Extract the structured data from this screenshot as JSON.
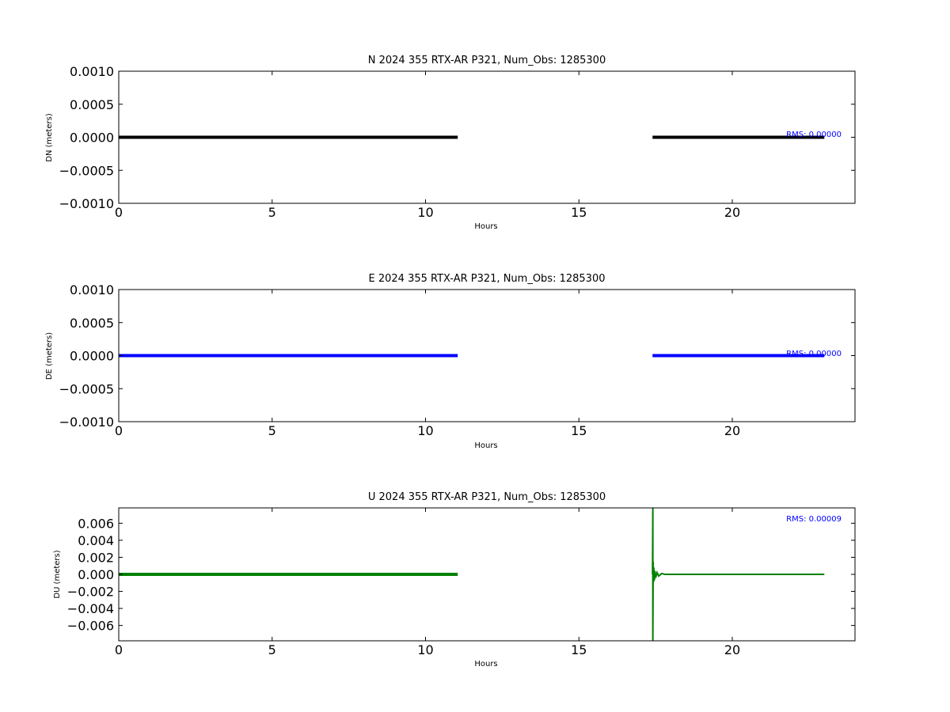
{
  "chart_data": [
    {
      "type": "line",
      "title": "N 2024 355 RTX-AR  P321, Num_Obs: 1285300",
      "xlabel": "Hours",
      "ylabel": "DN (meters)",
      "xlim": [
        0,
        24
      ],
      "ylim": [
        -0.001,
        0.001
      ],
      "xticks": [
        0,
        5,
        10,
        15,
        20
      ],
      "xtick_labels": [
        "0",
        "5",
        "10",
        "15",
        "20"
      ],
      "yticks": [
        0.001,
        0.0005,
        0.0,
        -0.0005,
        -0.001
      ],
      "ytick_labels": [
        "0.0010",
        "0.0005",
        "0.0000",
        "−0.0005",
        "−0.0010"
      ],
      "color": "#000000",
      "annotation": "RMS:  0.00000",
      "grid": false,
      "series": [
        {
          "segments": [
            {
              "x": [
                0.0,
                11.05
              ],
              "y": [
                0.0,
                0.0
              ]
            },
            {
              "x": [
                17.4,
                23.0
              ],
              "y": [
                0.0,
                0.0
              ]
            }
          ]
        }
      ]
    },
    {
      "type": "line",
      "title": "E 2024 355 RTX-AR  P321, Num_Obs: 1285300",
      "xlabel": "Hours",
      "ylabel": "DE (meters)",
      "xlim": [
        0,
        24
      ],
      "ylim": [
        -0.001,
        0.001
      ],
      "xticks": [
        0,
        5,
        10,
        15,
        20
      ],
      "xtick_labels": [
        "0",
        "5",
        "10",
        "15",
        "20"
      ],
      "yticks": [
        0.001,
        0.0005,
        0.0,
        -0.0005,
        -0.001
      ],
      "ytick_labels": [
        "0.0010",
        "0.0005",
        "0.0000",
        "−0.0005",
        "−0.0010"
      ],
      "color": "#0000ff",
      "annotation": "RMS:  0.00000",
      "grid": false,
      "series": [
        {
          "segments": [
            {
              "x": [
                0.0,
                11.05
              ],
              "y": [
                0.0,
                0.0
              ]
            },
            {
              "x": [
                17.4,
                23.0
              ],
              "y": [
                0.0,
                0.0
              ]
            }
          ]
        }
      ]
    },
    {
      "type": "line",
      "title": "U 2024 355 RTX-AR  P321, Num_Obs: 1285300",
      "xlabel": "Hours",
      "ylabel": "DU (meters)",
      "xlim": [
        0,
        24
      ],
      "ylim": [
        -0.0078,
        0.0078
      ],
      "xticks": [
        0,
        5,
        10,
        15,
        20
      ],
      "xtick_labels": [
        "0",
        "5",
        "10",
        "15",
        "20"
      ],
      "yticks": [
        0.006,
        0.004,
        0.002,
        0.0,
        -0.002,
        -0.004,
        -0.006
      ],
      "ytick_labels": [
        "0.006",
        "0.004",
        "0.002",
        "0.000",
        "−0.002",
        "−0.004",
        "−0.006"
      ],
      "color": "#008000",
      "annotation": "RMS:  0.00009",
      "grid": false,
      "series": [
        {
          "segments": [
            {
              "x": [
                0.0,
                11.05
              ],
              "y": [
                0.0,
                0.0
              ]
            },
            {
              "x": [
                17.4,
                17.41,
                17.41,
                17.42,
                17.43,
                17.44,
                17.46,
                17.48,
                17.5,
                17.55,
                17.6,
                17.7,
                17.8,
                18.0,
                23.0
              ],
              "y": [
                0.0,
                0.0078,
                -0.0078,
                0.0015,
                -0.0009,
                0.0008,
                -0.0007,
                0.0004,
                -0.0004,
                0.0002,
                -0.0002,
                0.0001,
                0.0,
                0.0,
                0.0
              ]
            }
          ]
        }
      ]
    }
  ]
}
